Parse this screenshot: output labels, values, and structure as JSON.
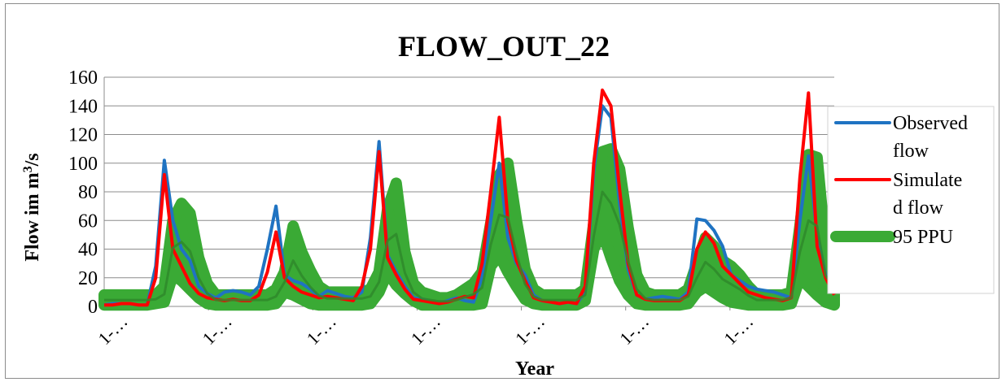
{
  "chart_data": {
    "type": "line",
    "title": "FLOW_OUT_22",
    "xlabel": "Year",
    "ylabel": "Flow im m",
    "ylabel_sup": "3",
    "ylabel_tail": "/s",
    "ylim": [
      0,
      160
    ],
    "yticks": [
      0,
      20,
      40,
      60,
      80,
      100,
      120,
      140,
      160
    ],
    "x_tick_labels": [
      "1-…",
      "1-…",
      "1-…",
      "1-…",
      "1-…",
      "1-…",
      "1-…"
    ],
    "grid": true,
    "legend_position": "right",
    "colors": {
      "observed": "#1f73c2",
      "simulated": "#ff0000",
      "ppu": "#3aaa35",
      "ppu_edge": "#2f8a2a"
    },
    "ppu_band": {
      "name": "95 PPU",
      "lower": [
        1,
        1,
        1,
        1,
        1,
        1,
        2,
        3,
        22,
        18,
        12,
        6,
        2,
        1,
        1,
        1,
        1,
        1,
        1,
        1,
        2,
        10,
        8,
        5,
        2,
        1,
        1,
        1,
        1,
        1,
        1,
        2,
        10,
        24,
        15,
        9,
        4,
        1,
        1,
        1,
        1,
        1,
        1,
        1,
        2,
        28,
        36,
        24,
        14,
        5,
        2,
        1,
        1,
        1,
        1,
        1,
        4,
        40,
        52,
        34,
        18,
        8,
        2,
        1,
        1,
        1,
        1,
        1,
        2,
        10,
        14,
        10,
        6,
        3,
        2,
        1,
        1,
        1,
        1,
        1,
        2,
        20,
        14,
        8,
        3,
        1
      ],
      "upper": [
        8,
        8,
        8,
        8,
        8,
        8,
        8,
        14,
        60,
        72,
        65,
        34,
        16,
        8,
        8,
        8,
        8,
        8,
        8,
        8,
        12,
        24,
        56,
        38,
        25,
        14,
        10,
        10,
        10,
        10,
        10,
        12,
        24,
        68,
        86,
        38,
        16,
        10,
        8,
        6,
        6,
        8,
        12,
        16,
        24,
        58,
        92,
        100,
        60,
        26,
        12,
        8,
        8,
        8,
        8,
        8,
        12,
        58,
        108,
        110,
        96,
        55,
        22,
        10,
        8,
        8,
        8,
        8,
        12,
        30,
        48,
        42,
        32,
        28,
        22,
        14,
        8,
        8,
        8,
        8,
        10,
        56,
        106,
        104,
        40,
        24
      ]
    },
    "series": [
      {
        "name": "Observed flow",
        "values": [
          1,
          2,
          2,
          2,
          1,
          1,
          28,
          102,
          60,
          40,
          32,
          14,
          9,
          6,
          10,
          11,
          10,
          8,
          14,
          40,
          70,
          22,
          18,
          16,
          12,
          7,
          11,
          9,
          7,
          6,
          10,
          48,
          115,
          36,
          24,
          14,
          6,
          5,
          3,
          2,
          4,
          6,
          4,
          3,
          20,
          60,
          100,
          48,
          30,
          22,
          8,
          4,
          3,
          2,
          3,
          2,
          10,
          95,
          140,
          132,
          72,
          26,
          8,
          5,
          6,
          7,
          6,
          5,
          10,
          61,
          60,
          53,
          42,
          22,
          18,
          14,
          12,
          11,
          10,
          8,
          6,
          60,
          105,
          50,
          22,
          10
        ]
      },
      {
        "name": "Simulated flow",
        "values": [
          1,
          1,
          2,
          2,
          1,
          1,
          20,
          92,
          40,
          28,
          16,
          9,
          6,
          5,
          4,
          5,
          4,
          4,
          8,
          24,
          52,
          20,
          14,
          10,
          8,
          6,
          7,
          6,
          5,
          4,
          14,
          40,
          108,
          34,
          22,
          12,
          5,
          4,
          3,
          2,
          3,
          5,
          7,
          6,
          30,
          80,
          132,
          60,
          32,
          18,
          6,
          4,
          3,
          2,
          3,
          2,
          14,
          100,
          151,
          140,
          82,
          30,
          8,
          5,
          4,
          4,
          4,
          4,
          8,
          40,
          52,
          44,
          28,
          22,
          16,
          10,
          8,
          6,
          5,
          4,
          6,
          90,
          149,
          42,
          20,
          8
        ]
      }
    ],
    "legend": [
      {
        "key": "observed",
        "label_lines": [
          "Observed",
          "flow"
        ]
      },
      {
        "key": "simulated",
        "label_lines": [
          "Simulate",
          "d flow"
        ]
      },
      {
        "key": "ppu",
        "label_lines": [
          "95 PPU"
        ]
      }
    ]
  }
}
